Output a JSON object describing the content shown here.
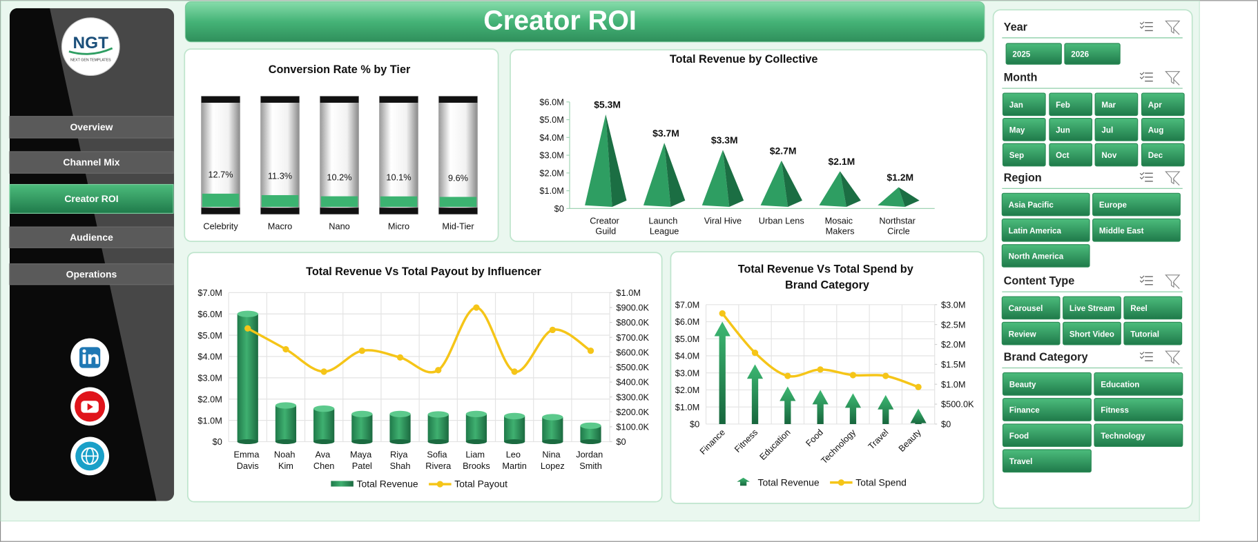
{
  "header": {
    "title": "Creator ROI"
  },
  "logo": {
    "title": "NGT",
    "subtitle": "NEXT GEN TEMPLATES"
  },
  "nav": [
    "Overview",
    "Channel Mix",
    "Creator ROI",
    "Audience",
    "Operations"
  ],
  "slicers": [
    {
      "title": "Year",
      "items": [
        "2025",
        "2026"
      ]
    },
    {
      "title": "Month",
      "items": [
        "Jan",
        "Feb",
        "Mar",
        "Apr",
        "May",
        "Jun",
        "Jul",
        "Aug",
        "Sep",
        "Oct",
        "Nov",
        "Dec"
      ]
    },
    {
      "title": "Region",
      "items": [
        "Asia Pacific",
        "Europe",
        "Latin America",
        "Middle East",
        "North America"
      ]
    },
    {
      "title": "Content Type",
      "items": [
        "Carousel",
        "Live Stream",
        "Reel",
        "Review",
        "Short Video",
        "Tutorial"
      ]
    },
    {
      "title": "Brand Category",
      "items": [
        "Beauty",
        "Education",
        "Finance",
        "Fitness",
        "Food",
        "Technology",
        "Travel"
      ]
    }
  ],
  "chart_data": [
    {
      "type": "tube",
      "title": "Conversion  Rate % by Tier",
      "categories": [
        "Celebrity",
        "Macro",
        "Nano",
        "Micro",
        "Mid-Tier"
      ],
      "values": [
        12.7,
        11.3,
        10.2,
        10.1,
        9.6
      ],
      "value_labels": [
        "12.7%",
        "11.3%",
        "10.2%",
        "10.1%",
        "9.6%"
      ],
      "color": "#3cb371",
      "ylim": [
        0,
        100
      ]
    },
    {
      "type": "pyramid",
      "title": "Total Revenue by Collective",
      "categories": [
        "Creator Guild",
        "Launch League",
        "Viral Hive",
        "Urban Lens",
        "Mosaic Makers",
        "Northstar Circle"
      ],
      "values": [
        5300000,
        3700000,
        3300000,
        2700000,
        2100000,
        1200000
      ],
      "value_labels": [
        "$5.3M",
        "$3.7M",
        "$3.3M",
        "$2.7M",
        "$2.1M",
        "$1.2M"
      ],
      "color": "#2e9e62",
      "ylim": [
        0,
        6000000
      ],
      "yticks": [
        {
          "value": 0,
          "label": "$0"
        },
        {
          "value": 1000000,
          "label": "$1.0M"
        },
        {
          "value": 2000000,
          "label": "$2.0M"
        },
        {
          "value": 3000000,
          "label": "$3.0M"
        },
        {
          "value": 4000000,
          "label": "$4.0M"
        },
        {
          "value": 5000000,
          "label": "$5.0M"
        },
        {
          "value": 6000000,
          "label": "$6.0M"
        }
      ]
    },
    {
      "type": "combo",
      "title": "Total Revenue Vs Total Payout by Influencer",
      "categories": [
        "Emma Davis",
        "Noah Kim",
        "Ava Chen",
        "Maya Patel",
        "Riya Shah",
        "Sofia Rivera",
        "Liam Brooks",
        "Leo Martin",
        "Nina Lopez",
        "Jordan Smith"
      ],
      "series": [
        {
          "name": "Total Revenue",
          "color": "#2e9e62",
          "values": [
            6000000,
            1700000,
            1550000,
            1300000,
            1300000,
            1280000,
            1300000,
            1200000,
            1150000,
            750000
          ]
        },
        {
          "name": "Total Payout",
          "color": "#f5c518",
          "axis": "y2",
          "values": [
            760000,
            620000,
            470000,
            610000,
            565000,
            480000,
            900000,
            470000,
            750000,
            610000
          ]
        }
      ],
      "ylim": [
        0,
        7000000
      ],
      "yticks": [
        {
          "value": 0,
          "label": "$0"
        },
        {
          "value": 1000000,
          "label": "$1.0M"
        },
        {
          "value": 2000000,
          "label": "$2.0M"
        },
        {
          "value": 3000000,
          "label": "$3.0M"
        },
        {
          "value": 4000000,
          "label": "$4.0M"
        },
        {
          "value": 5000000,
          "label": "$5.0M"
        },
        {
          "value": 6000000,
          "label": "$6.0M"
        },
        {
          "value": 7000000,
          "label": "$7.0M"
        }
      ],
      "y2lim": [
        0,
        1000000
      ],
      "y2ticks": [
        {
          "value": 0,
          "label": "$0"
        },
        {
          "value": 100000,
          "label": "$100.0K"
        },
        {
          "value": 200000,
          "label": "$200.0K"
        },
        {
          "value": 300000,
          "label": "$300.0K"
        },
        {
          "value": 400000,
          "label": "$400.0K"
        },
        {
          "value": 500000,
          "label": "$500.0K"
        },
        {
          "value": 600000,
          "label": "$600.0K"
        },
        {
          "value": 700000,
          "label": "$700.0K"
        },
        {
          "value": 800000,
          "label": "$800.0K"
        },
        {
          "value": 900000,
          "label": "$900.0K"
        },
        {
          "value": 1000000,
          "label": "$1.0M"
        }
      ],
      "grid": true
    },
    {
      "type": "combo",
      "title": "Total Revenue Vs Total Spend by Brand Category",
      "categories": [
        "Finance",
        "Fitness",
        "Education",
        "Food",
        "Technology",
        "Travel",
        "Beauty"
      ],
      "series": [
        {
          "name": "Total Revenue",
          "color": "#2e9e62",
          "values": [
            6000000,
            3500000,
            2200000,
            2000000,
            1800000,
            1700000,
            900000
          ]
        },
        {
          "name": "Total Spend",
          "color": "#f5c518",
          "axis": "y2",
          "values": [
            2780000,
            1790000,
            1210000,
            1370000,
            1230000,
            1210000,
            930000
          ]
        }
      ],
      "ylim": [
        0,
        7000000
      ],
      "yticks": [
        {
          "value": 0,
          "label": "$0"
        },
        {
          "value": 1000000,
          "label": "$1.0M"
        },
        {
          "value": 2000000,
          "label": "$2.0M"
        },
        {
          "value": 3000000,
          "label": "$3.0M"
        },
        {
          "value": 4000000,
          "label": "$4.0M"
        },
        {
          "value": 5000000,
          "label": "$5.0M"
        },
        {
          "value": 6000000,
          "label": "$6.0M"
        },
        {
          "value": 7000000,
          "label": "$7.0M"
        }
      ],
      "y2lim": [
        0,
        3000000
      ],
      "y2ticks": [
        {
          "value": 0,
          "label": "$0"
        },
        {
          "value": 500000,
          "label": "$500.0K"
        },
        {
          "value": 1000000,
          "label": "$1.0M"
        },
        {
          "value": 1500000,
          "label": "$1.5M"
        },
        {
          "value": 2000000,
          "label": "$2.0M"
        },
        {
          "value": 2500000,
          "label": "$2.5M"
        },
        {
          "value": 3000000,
          "label": "$3.0M"
        }
      ],
      "grid": true
    }
  ]
}
